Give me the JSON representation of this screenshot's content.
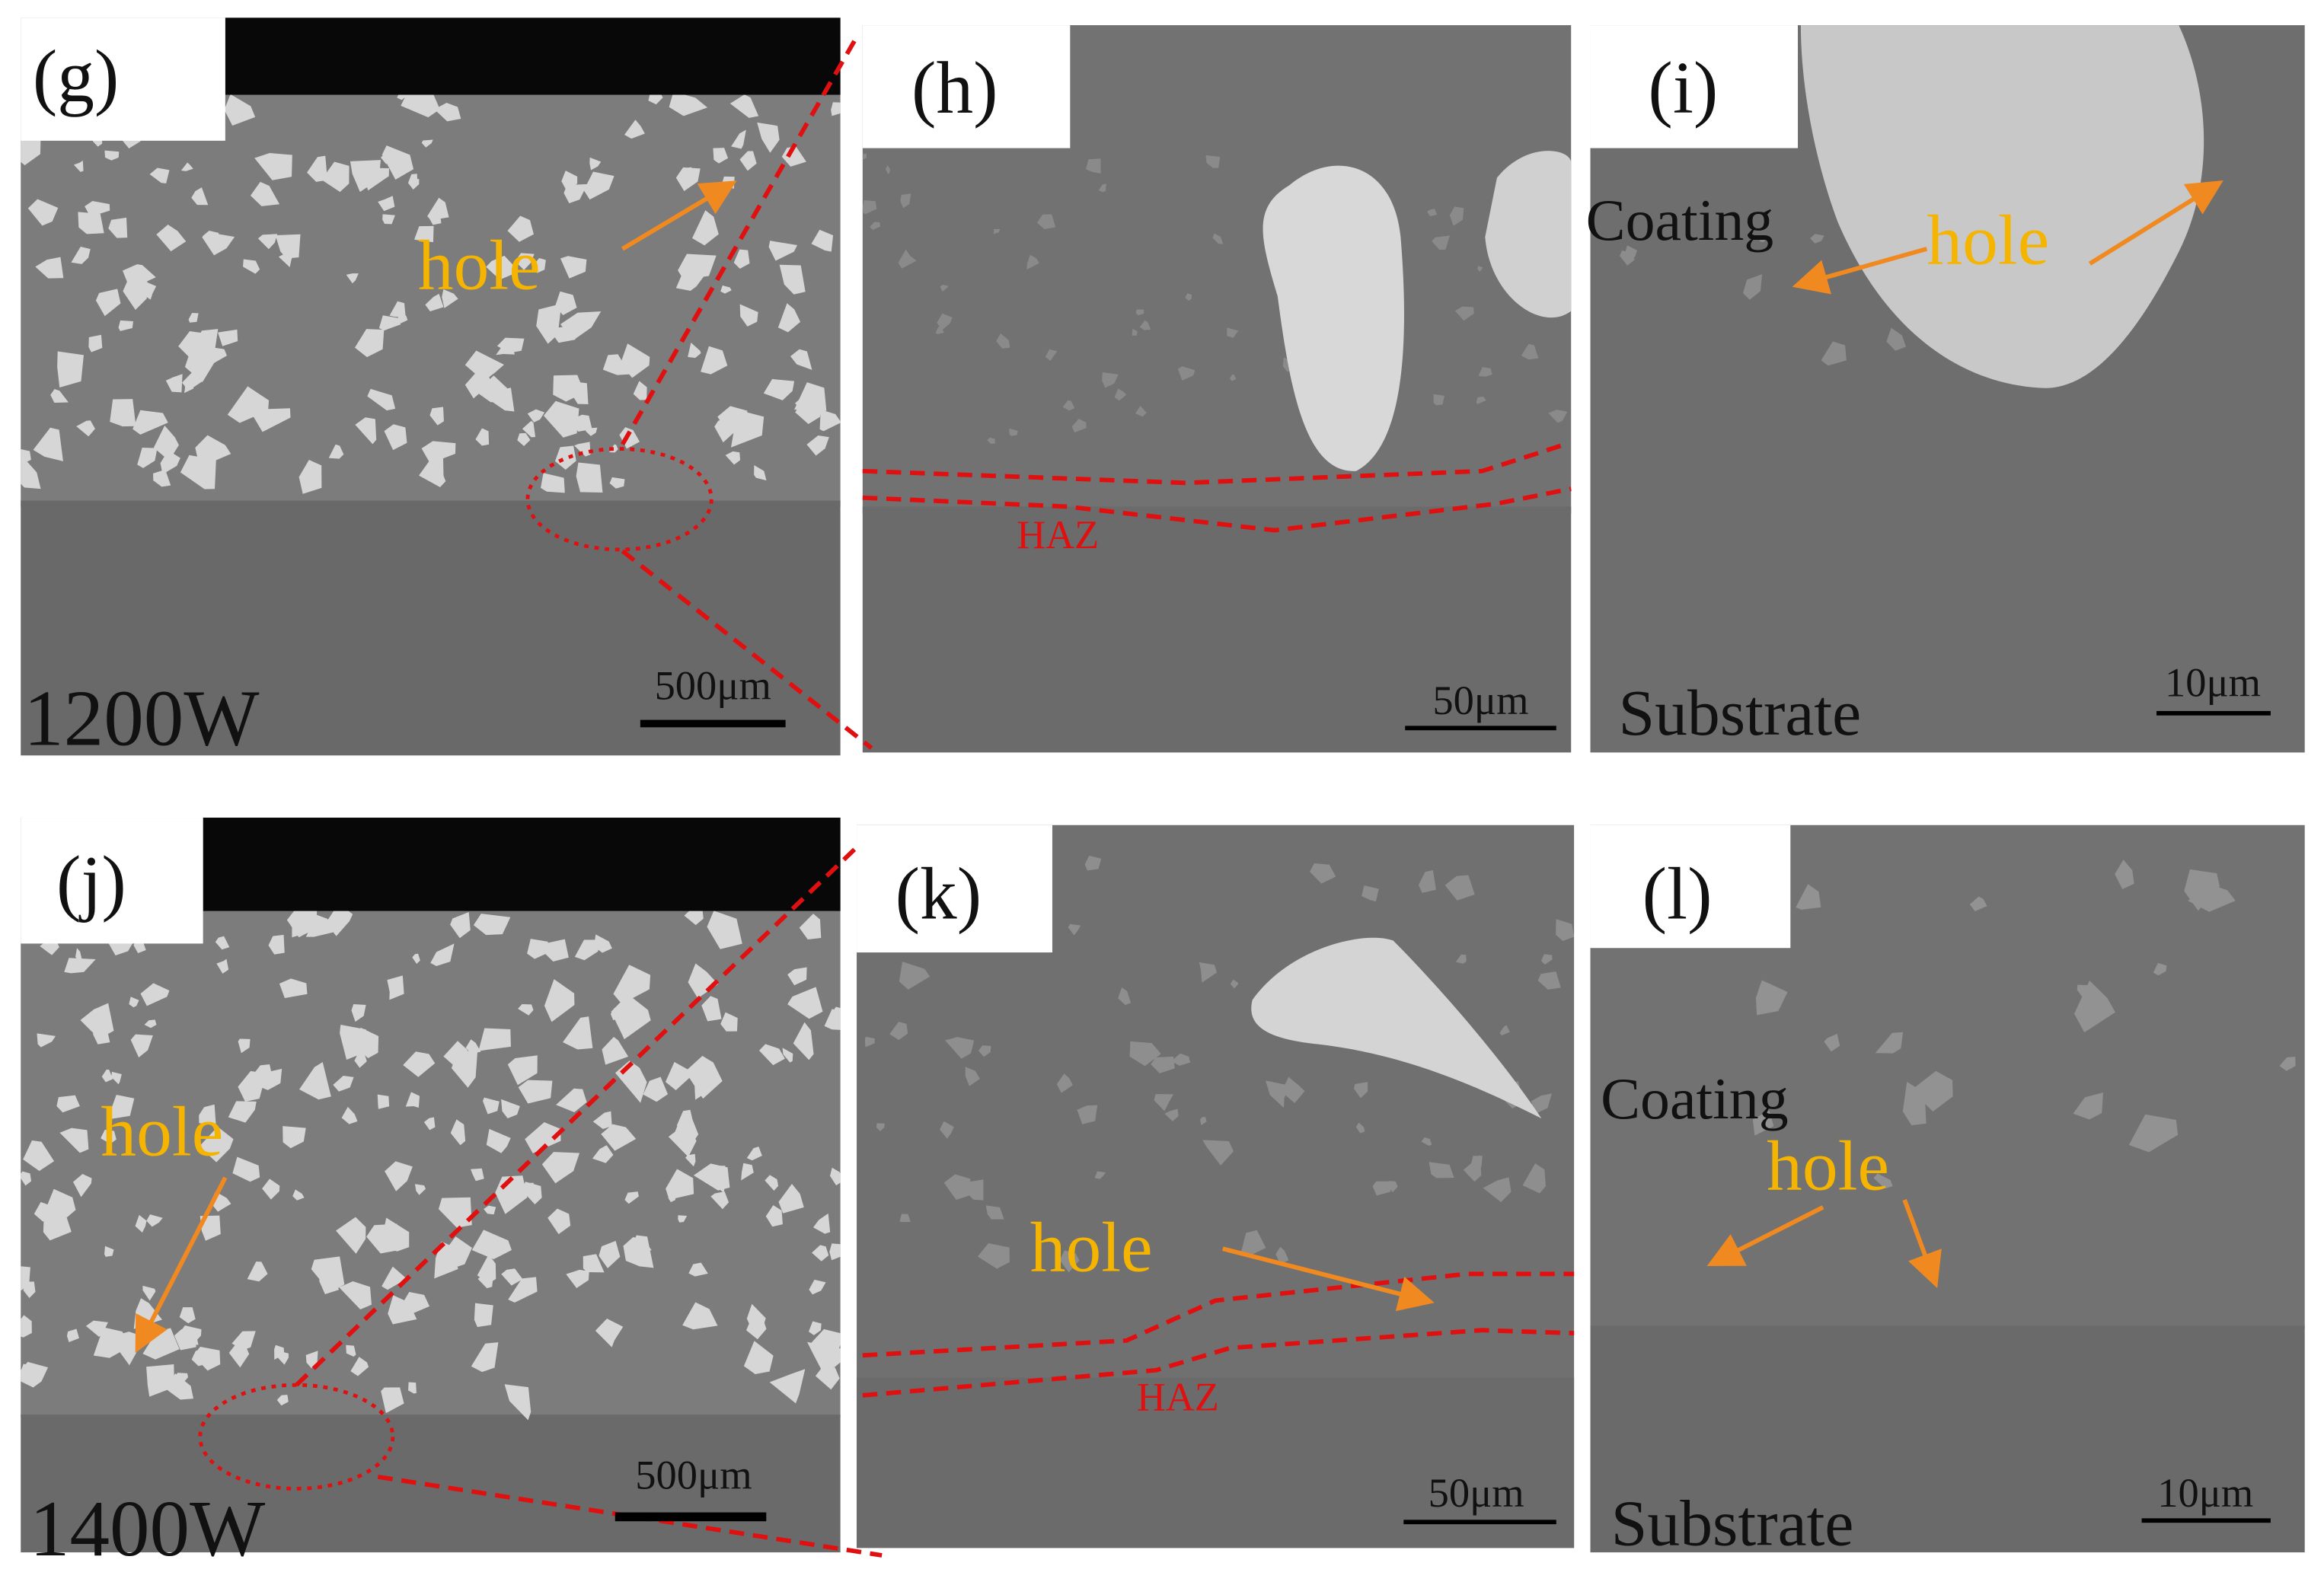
{
  "panels": [
    {
      "label": "(g)",
      "power": "1200W",
      "annotations": [
        "hole"
      ],
      "scale_bar": "500μm"
    },
    {
      "label": "(h)",
      "annotations": [
        "HAZ"
      ],
      "scale_bar": "50μm"
    },
    {
      "label": "(i)",
      "annotations": [
        "Coating",
        "hole",
        "Substrate"
      ],
      "scale_bar": "10μm"
    },
    {
      "label": "(j)",
      "power": "1400W",
      "annotations": [
        "hole"
      ],
      "scale_bar": "500μm"
    },
    {
      "label": "(k)",
      "annotations": [
        "hole",
        "HAZ"
      ],
      "scale_bar": "50μm"
    },
    {
      "label": "(l)",
      "annotations": [
        "Coating",
        "hole",
        "Substrate"
      ],
      "scale_bar": "10μm"
    }
  ]
}
